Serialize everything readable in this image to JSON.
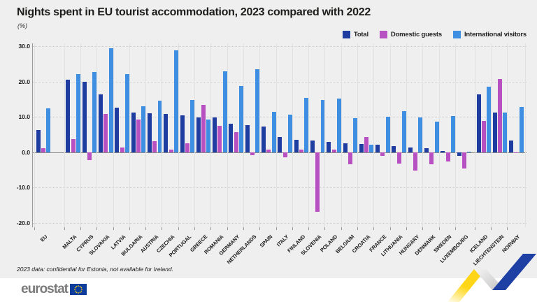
{
  "header": {
    "title": "Nights spent in EU tourist accommodation, 2023 compared with 2022",
    "subtitle": "(%)"
  },
  "footnote": "2023 data: confidential for Estonia, not available for Ireland.",
  "footer": {
    "logo_text": "eurostat",
    "flag_icon": "eu-flag-icon"
  },
  "colors": {
    "background": "#efefef",
    "total": "#1f3da0",
    "domestic": "#b750c0",
    "international": "#3e8ee2"
  },
  "chart_data": {
    "type": "bar",
    "title": "Nights spent in EU tourist accommodation, 2023 compared with 2022",
    "ylabel": "(%)",
    "ylim": [
      -20,
      30
    ],
    "yticks": [
      "30.0",
      "20.0",
      "10.0",
      "0.0",
      "-10.0",
      "-20.0"
    ],
    "grid": "horizontal-dotted",
    "legend_position": "top-right",
    "section_breaks_after": [
      "EU",
      "LUXEMBOURG"
    ],
    "categories": [
      "EU",
      "MALTA",
      "CYPRUS",
      "SLOVAKIA",
      "LATVIA",
      "BULGARIA",
      "AUSTRIA",
      "CZECHIA",
      "PORTUGAL",
      "GREECE",
      "ROMANIA",
      "GERMANY",
      "NETHERLANDS",
      "SPAIN",
      "ITALY",
      "FINLAND",
      "SLOVENIA",
      "POLAND",
      "BELGIUM",
      "CROATIA",
      "FRANCE",
      "LITHUANIA",
      "HUNGARY",
      "DENMARK",
      "SWEDEN",
      "LUXEMBOURG",
      "ICELAND",
      "LIECHTENSTEIN",
      "NORWAY"
    ],
    "series": [
      {
        "name": "Total",
        "color": "#1f3da0",
        "values": [
          6.2,
          20.5,
          20.0,
          16.4,
          12.7,
          11.2,
          11.1,
          10.8,
          10.4,
          9.9,
          9.9,
          8.0,
          7.6,
          7.2,
          4.4,
          3.6,
          3.3,
          2.9,
          2.5,
          2.3,
          2.1,
          1.7,
          1.3,
          1.2,
          0.4,
          -1.0,
          16.3,
          11.3,
          3.4
        ]
      },
      {
        "name": "Domestic guests",
        "color": "#b750c0",
        "values": [
          1.2,
          3.7,
          -2.2,
          10.9,
          1.4,
          9.2,
          3.2,
          0.7,
          2.5,
          13.4,
          7.5,
          5.8,
          -0.9,
          0.7,
          -1.4,
          0.7,
          -16.9,
          0.7,
          -3.4,
          4.4,
          -1.0,
          -3.1,
          -5.2,
          -3.3,
          -2.6,
          -4.6,
          8.9,
          20.7,
          0.0
        ]
      },
      {
        "name": "International visitors",
        "color": "#3e8ee2",
        "values": [
          12.4,
          22.2,
          22.6,
          29.4,
          22.1,
          13.0,
          14.6,
          28.9,
          14.8,
          9.3,
          22.9,
          18.7,
          23.4,
          11.4,
          10.6,
          15.4,
          14.8,
          15.2,
          9.7,
          2.2,
          10.1,
          11.7,
          9.8,
          8.7,
          10.3,
          0.2,
          18.6,
          11.2,
          12.8
        ]
      }
    ]
  }
}
